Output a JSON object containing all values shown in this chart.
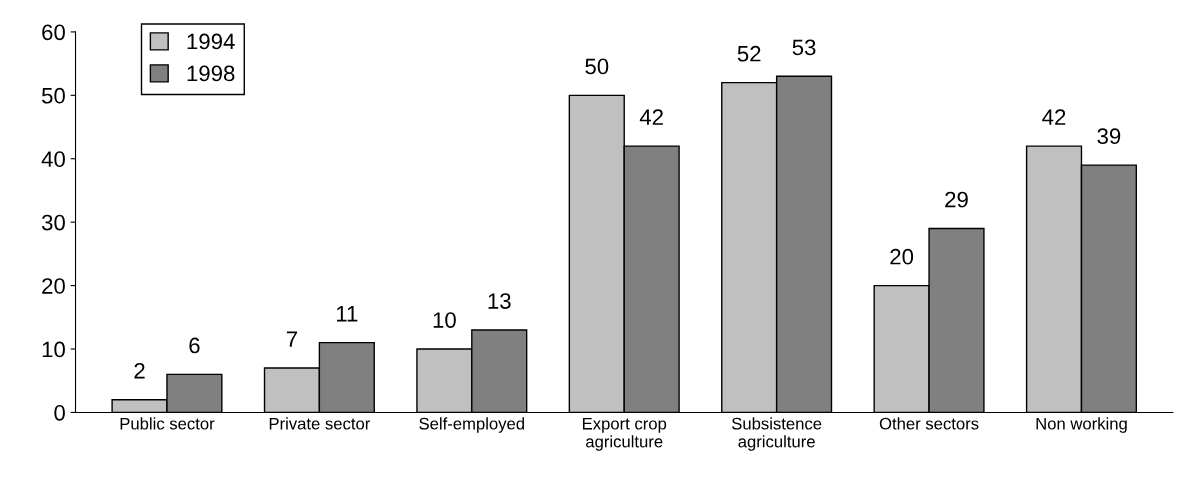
{
  "chart_data": {
    "type": "bar",
    "categories": [
      "Public sector",
      "Private sector",
      "Self-employed",
      "Export crop\nagriculture",
      "Subsistence\nagriculture",
      "Other sectors",
      "Non working"
    ],
    "series": [
      {
        "name": "1994",
        "color": "#c0c0c0",
        "values": [
          2,
          7,
          10,
          50,
          52,
          20,
          42
        ]
      },
      {
        "name": "1998",
        "color": "#808080",
        "values": [
          6,
          11,
          13,
          42,
          53,
          29,
          39
        ]
      }
    ],
    "ylim": [
      0,
      60
    ],
    "yticks": [
      0,
      10,
      20,
      30,
      40,
      50,
      60
    ],
    "data_labels": true,
    "grid": false,
    "legend": "top left"
  }
}
